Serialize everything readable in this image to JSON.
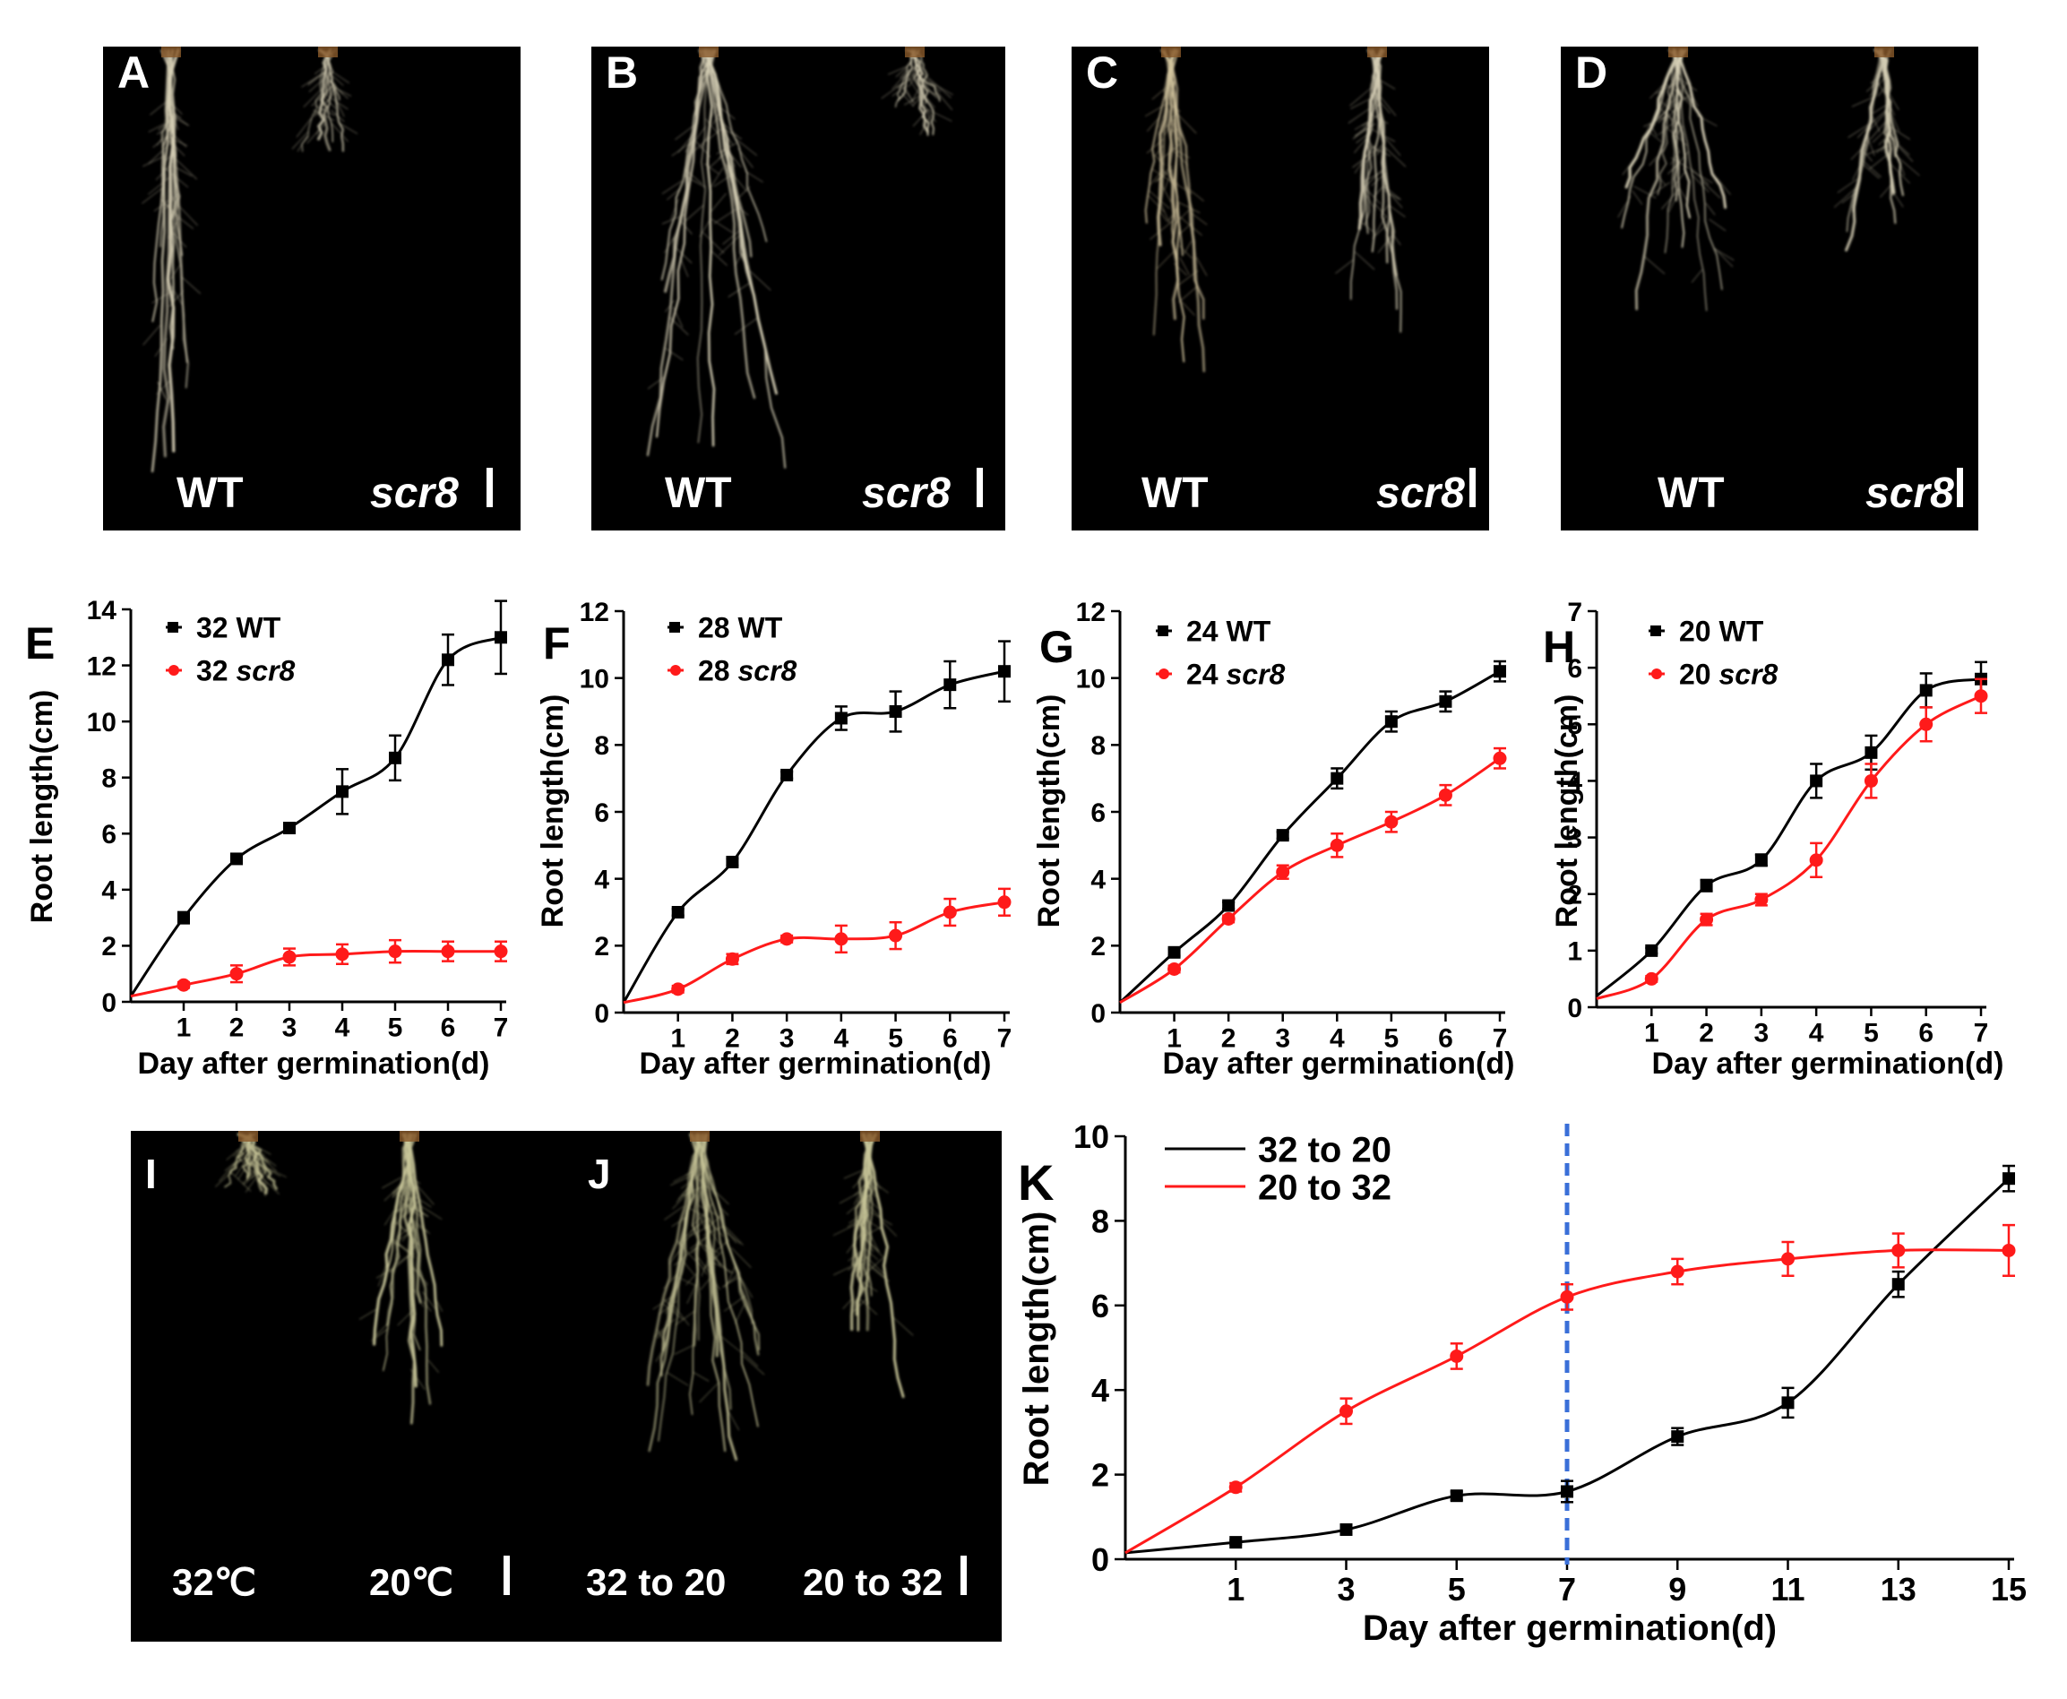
{
  "photos": [
    {
      "label": "A",
      "left": "WT",
      "right": "scr8"
    },
    {
      "label": "B",
      "left": "WT",
      "right": "scr8"
    },
    {
      "label": "C",
      "left": "WT",
      "right": "scr8"
    },
    {
      "label": "D",
      "left": "WT",
      "right": "scr8"
    },
    {
      "label": "I",
      "left": "32℃",
      "right": "20℃"
    },
    {
      "label": "J",
      "left": "32 to 20",
      "right": "20 to 32"
    }
  ],
  "colors": {
    "wt": "#000000",
    "mutant": "#ff1a1a",
    "divider": "#3a6fd8"
  },
  "chart_data": [
    {
      "panel": "E",
      "type": "line",
      "xlabel": "Day after germination(d)",
      "ylabel": "Root length(cm)",
      "xlim": [
        0,
        7
      ],
      "ylim": [
        0,
        14
      ],
      "xticks": [
        1,
        2,
        3,
        4,
        5,
        6,
        7
      ],
      "yticks": [
        0,
        2,
        4,
        6,
        8,
        10,
        12,
        14
      ],
      "series": [
        {
          "name": "32 WT",
          "legend_prefix": "32",
          "legend_suffix": "WT",
          "suffix_italic": false,
          "color": "#000000",
          "marker": "square",
          "x": [
            0,
            1,
            2,
            3,
            4,
            5,
            6,
            7
          ],
          "values": [
            0.2,
            3.0,
            5.1,
            6.2,
            7.5,
            8.7,
            12.2,
            13.0
          ],
          "errors": [
            0,
            0.2,
            0.15,
            0.15,
            0.8,
            0.8,
            0.9,
            1.3
          ]
        },
        {
          "name": "32 scr8",
          "legend_prefix": "32",
          "legend_suffix": "scr8",
          "suffix_italic": true,
          "color": "#ff1a1a",
          "marker": "circle",
          "x": [
            0,
            1,
            2,
            3,
            4,
            5,
            6,
            7
          ],
          "values": [
            0.2,
            0.6,
            1.0,
            1.6,
            1.7,
            1.8,
            1.8,
            1.8
          ],
          "errors": [
            0,
            0.1,
            0.3,
            0.3,
            0.35,
            0.4,
            0.35,
            0.35
          ]
        }
      ]
    },
    {
      "panel": "F",
      "type": "line",
      "xlabel": "Day after germination(d)",
      "ylabel": "Root length(cm)",
      "xlim": [
        0,
        7
      ],
      "ylim": [
        0,
        12
      ],
      "xticks": [
        1,
        2,
        3,
        4,
        5,
        6,
        7
      ],
      "yticks": [
        0,
        2,
        4,
        6,
        8,
        10,
        12
      ],
      "series": [
        {
          "name": "28 WT",
          "legend_prefix": "28",
          "legend_suffix": "WT",
          "suffix_italic": false,
          "color": "#000000",
          "marker": "square",
          "x": [
            0,
            1,
            2,
            3,
            4,
            5,
            6,
            7
          ],
          "values": [
            0.3,
            3.0,
            4.5,
            7.1,
            8.8,
            9.0,
            9.8,
            10.2
          ],
          "errors": [
            0,
            0.1,
            0.1,
            0.1,
            0.35,
            0.6,
            0.7,
            0.9
          ]
        },
        {
          "name": "28 scr8",
          "legend_prefix": "28",
          "legend_suffix": "scr8",
          "suffix_italic": true,
          "color": "#ff1a1a",
          "marker": "circle",
          "x": [
            0,
            1,
            2,
            3,
            4,
            5,
            6,
            7
          ],
          "values": [
            0.3,
            0.7,
            1.6,
            2.2,
            2.2,
            2.3,
            3.0,
            3.3
          ],
          "errors": [
            0,
            0.1,
            0.15,
            0.1,
            0.4,
            0.4,
            0.4,
            0.4
          ]
        }
      ]
    },
    {
      "panel": "G",
      "type": "line",
      "xlabel": "Day after germination(d)",
      "ylabel": "Root length(cm)",
      "xlim": [
        0,
        7
      ],
      "ylim": [
        0,
        12
      ],
      "xticks": [
        1,
        2,
        3,
        4,
        5,
        6,
        7
      ],
      "yticks": [
        0,
        2,
        4,
        6,
        8,
        10,
        12
      ],
      "series": [
        {
          "name": "24 WT",
          "legend_prefix": "24",
          "legend_suffix": "WT",
          "suffix_italic": false,
          "color": "#000000",
          "marker": "square",
          "x": [
            0,
            1,
            2,
            3,
            4,
            5,
            6,
            7
          ],
          "values": [
            0.3,
            1.8,
            3.2,
            5.3,
            7.0,
            8.7,
            9.3,
            10.2
          ],
          "errors": [
            0,
            0.1,
            0.1,
            0.1,
            0.3,
            0.3,
            0.3,
            0.3
          ]
        },
        {
          "name": "24 scr8",
          "legend_prefix": "24",
          "legend_suffix": "scr8",
          "suffix_italic": true,
          "color": "#ff1a1a",
          "marker": "circle",
          "x": [
            0,
            1,
            2,
            3,
            4,
            5,
            6,
            7
          ],
          "values": [
            0.3,
            1.3,
            2.8,
            4.2,
            5.0,
            5.7,
            6.5,
            7.6
          ],
          "errors": [
            0,
            0.1,
            0.1,
            0.2,
            0.35,
            0.3,
            0.3,
            0.3
          ]
        }
      ]
    },
    {
      "panel": "H",
      "type": "line",
      "xlabel": "Day after germination(d)",
      "ylabel": "Root length(cm)",
      "xlim": [
        0,
        7
      ],
      "ylim": [
        0,
        7
      ],
      "xticks": [
        1,
        2,
        3,
        4,
        5,
        6,
        7
      ],
      "yticks": [
        0,
        1,
        2,
        3,
        4,
        5,
        6,
        7
      ],
      "series": [
        {
          "name": "20 WT",
          "legend_prefix": "20",
          "legend_suffix": "WT",
          "suffix_italic": false,
          "color": "#000000",
          "marker": "square",
          "x": [
            0,
            1,
            2,
            3,
            4,
            5,
            6,
            7
          ],
          "values": [
            0.2,
            1.0,
            2.15,
            2.6,
            4.0,
            4.5,
            5.6,
            5.8
          ],
          "errors": [
            0,
            0.05,
            0.1,
            0.1,
            0.3,
            0.3,
            0.3,
            0.3
          ]
        },
        {
          "name": "20 scr8",
          "legend_prefix": "20",
          "legend_suffix": "scr8",
          "suffix_italic": true,
          "color": "#ff1a1a",
          "marker": "circle",
          "x": [
            0,
            1,
            2,
            3,
            4,
            5,
            6,
            7
          ],
          "values": [
            0.15,
            0.5,
            1.55,
            1.9,
            2.6,
            4.0,
            5.0,
            5.5
          ],
          "errors": [
            0,
            0.05,
            0.1,
            0.1,
            0.3,
            0.3,
            0.3,
            0.3
          ]
        }
      ]
    },
    {
      "panel": "K",
      "type": "line",
      "xlabel": "Day after germination(d)",
      "ylabel": "Root length(cm)",
      "xlim": [
        -1,
        15
      ],
      "ylim": [
        0,
        10
      ],
      "xticks": [
        1,
        3,
        5,
        7,
        9,
        11,
        13,
        15
      ],
      "yticks": [
        0,
        2,
        4,
        6,
        8,
        10
      ],
      "vline_x": 7,
      "series": [
        {
          "name": "32 to 20",
          "legend_prefix": "32 to 20",
          "legend_suffix": "",
          "suffix_italic": false,
          "color": "#000000",
          "marker": "square",
          "x": [
            -1,
            1,
            3,
            5,
            7,
            9,
            11,
            13,
            15
          ],
          "values": [
            0.15,
            0.4,
            0.7,
            1.5,
            1.6,
            2.9,
            3.7,
            6.5,
            9.0
          ],
          "errors": [
            0,
            0.05,
            0.1,
            0.1,
            0.25,
            0.2,
            0.35,
            0.3,
            0.3
          ]
        },
        {
          "name": "20 to 32",
          "legend_prefix": "20 to 32",
          "legend_suffix": "",
          "suffix_italic": false,
          "color": "#ff1a1a",
          "marker": "circle",
          "x": [
            -1,
            1,
            3,
            5,
            7,
            9,
            11,
            13,
            15
          ],
          "values": [
            0.15,
            1.7,
            3.5,
            4.8,
            6.2,
            6.8,
            7.1,
            7.3,
            7.3
          ],
          "errors": [
            0,
            0.1,
            0.3,
            0.3,
            0.3,
            0.3,
            0.4,
            0.4,
            0.6
          ]
        }
      ]
    }
  ]
}
